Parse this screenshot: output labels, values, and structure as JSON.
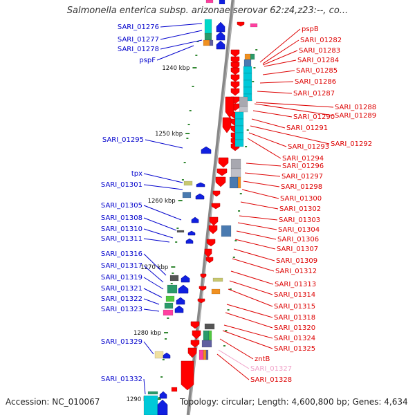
{
  "title": "Salmonella enterica subsp. arizonae serovar 62:z4,z23:--, co...",
  "footer": {
    "accession": "Accession: NC_010067",
    "summary": "Topology: circular; Length: 4,600,800 bp; Genes: 4,634"
  },
  "colors": {
    "forward_label": "#0000cc",
    "reverse_label": "#dd0000",
    "pseudo_label": "#f0a0c8",
    "backbone": "#888888",
    "tick": "#338833"
  },
  "ruler": [
    {
      "label": "1240 kbp"
    },
    {
      "label": "1250 kbp"
    },
    {
      "label": "1260 kbp"
    },
    {
      "label": "1270 kbp"
    },
    {
      "label": "1280 kbp"
    },
    {
      "label": "1290 kbp"
    }
  ],
  "forward_genes": [
    "SARI_01276",
    "SARI_01277",
    "SARI_01278",
    "pspF",
    "SARI_01295",
    "tpx",
    "SARI_01301",
    "SARI_01305",
    "SARI_01308",
    "SARI_01310",
    "SARI_01311",
    "SARI_01316",
    "SARI_01317",
    "SARI_01319",
    "SARI_01321",
    "SARI_01322",
    "SARI_01323",
    "SARI_01329",
    "SARI_01332"
  ],
  "reverse_genes": [
    "pspB",
    "SARI_01282",
    "SARI_01283",
    "SARI_01284",
    "SARI_01285",
    "SARI_01286",
    "SARI_01287",
    "SARI_01288",
    "SARI_01289",
    "SARI_01290",
    "SARI_01291",
    "SARI_01292",
    "SARI_01293",
    "SARI_01294",
    "SARI_01296",
    "SARI_01297",
    "SARI_01298",
    "SARI_01300",
    "SARI_01302",
    "SARI_01303",
    "SARI_01304",
    "SARI_01306",
    "SARI_01307",
    "SARI_01309",
    "SARI_01312",
    "SARI_01313",
    "SARI_01314",
    "SARI_01315",
    "SARI_01318",
    "SARI_01320",
    "SARI_01324",
    "SARI_01325",
    "zntB",
    "SARI_01327",
    "SARI_01328"
  ],
  "pseudo_genes": [
    "SARI_01327"
  ]
}
